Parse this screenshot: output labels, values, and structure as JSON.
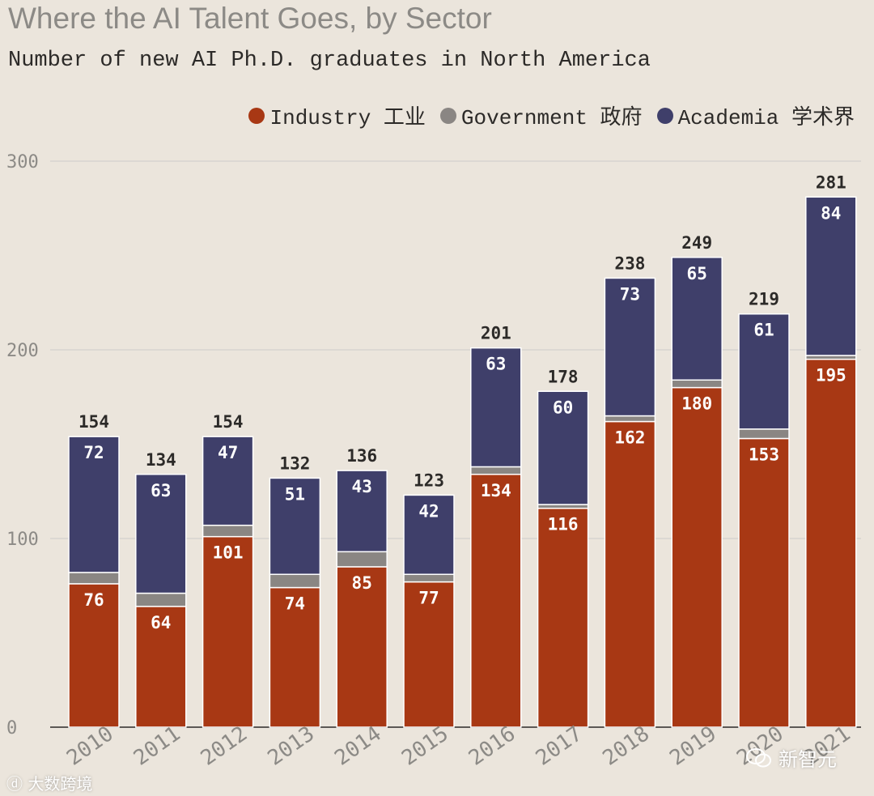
{
  "colors": {
    "industry": "#a83814",
    "government": "#8a8683",
    "academia": "#3f3f6a",
    "background": "#ebe5dc",
    "grid": "#d8d4d0",
    "axis_text": "#8c8a86",
    "total_text": "#2c2a28"
  },
  "chart_data": {
    "type": "bar",
    "stacked": true,
    "title": "Where the AI Talent Goes, by Sector",
    "subtitle": "Number of new AI Ph.D. graduates in North America",
    "categories": [
      "2010",
      "2011",
      "2012",
      "2013",
      "2014",
      "2015",
      "2016",
      "2017",
      "2018",
      "2019",
      "2020",
      "2021"
    ],
    "series": [
      {
        "name": "Industry 工业",
        "key": "industry",
        "values": [
          76,
          64,
          101,
          74,
          85,
          77,
          134,
          116,
          162,
          180,
          153,
          195
        ]
      },
      {
        "name": "Government 政府",
        "key": "government",
        "values": [
          6,
          7,
          6,
          7,
          8,
          4,
          4,
          2,
          3,
          4,
          5,
          2
        ]
      },
      {
        "name": "Academia 学术界",
        "key": "academia",
        "values": [
          72,
          63,
          47,
          51,
          43,
          42,
          63,
          60,
          73,
          65,
          61,
          84
        ]
      }
    ],
    "totals": [
      154,
      134,
      154,
      132,
      136,
      123,
      201,
      178,
      238,
      249,
      219,
      281
    ],
    "ylim": [
      0,
      300
    ],
    "yticks": [
      0,
      100,
      200,
      300
    ],
    "xlabel": "",
    "ylabel": "",
    "grid": true,
    "legend_position": "top-right"
  },
  "legend": {
    "items": [
      "Industry 工业",
      "Government 政府",
      "Academia 学术界"
    ]
  },
  "watermarks": {
    "left": "大数跨境",
    "right": "新智元"
  }
}
